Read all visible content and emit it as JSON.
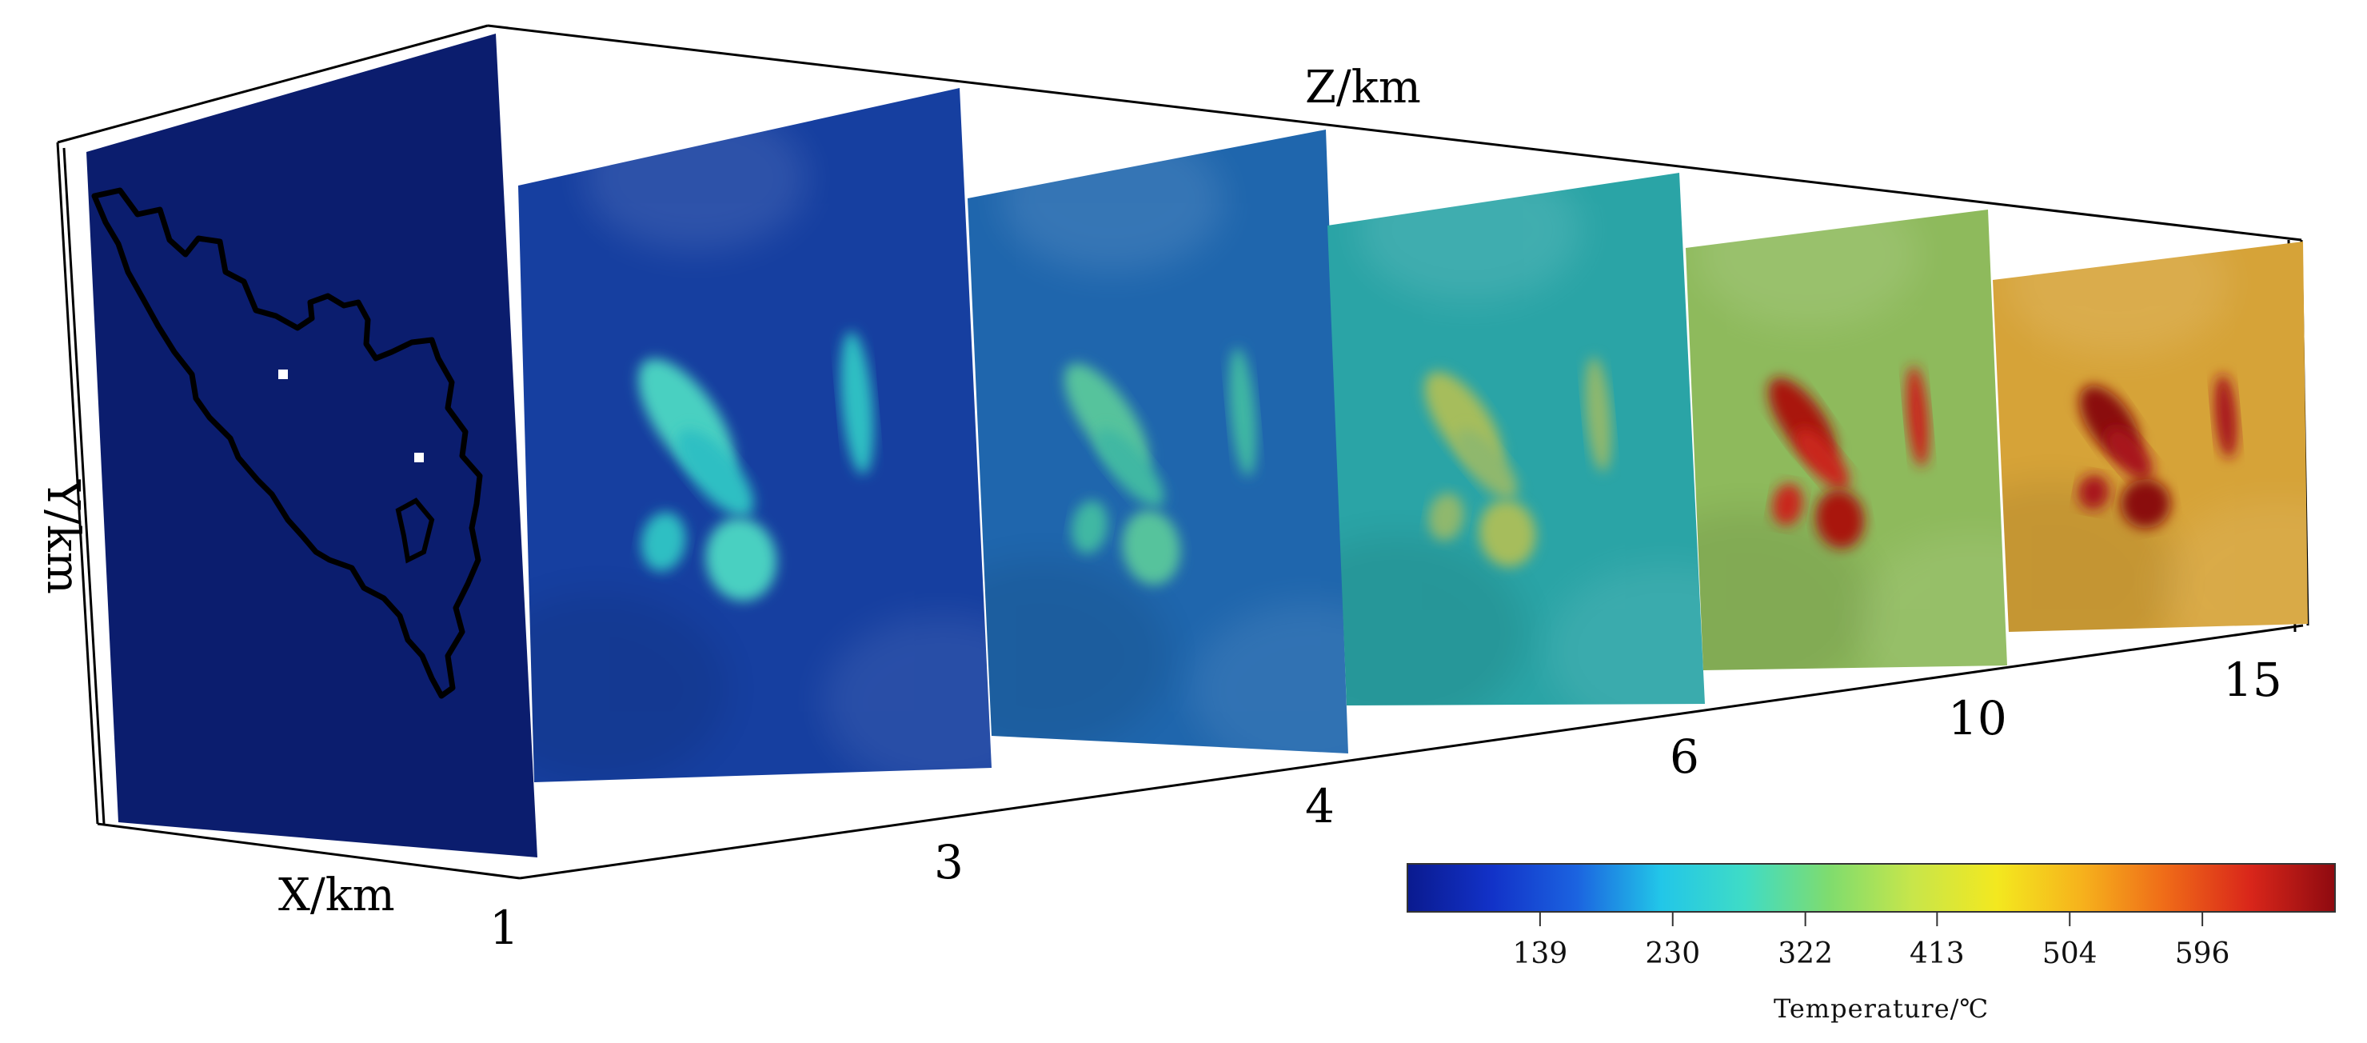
{
  "axes": {
    "x_label": "X/km",
    "y_label": "Y/km",
    "z_label": "Z/km"
  },
  "slices": [
    {
      "depth_label": "1",
      "base_color": "#0b1d6e",
      "anomaly_color": "#0b1d6e",
      "anomaly_hot": "#0b1d6e"
    },
    {
      "depth_label": "3",
      "base_color": "#163fa0",
      "anomaly_color": "#2fbfc3",
      "anomaly_hot": "#49d0c1"
    },
    {
      "depth_label": "4",
      "base_color": "#1f66ad",
      "anomaly_color": "#40b8a3",
      "anomaly_hot": "#57c39c"
    },
    {
      "depth_label": "6",
      "base_color": "#2aa4a6",
      "anomaly_color": "#8fb86d",
      "anomaly_hot": "#a6bd5c"
    },
    {
      "depth_label": "10",
      "base_color": "#8eba5c",
      "anomaly_color": "#c9281d",
      "anomaly_hot": "#a9150f"
    },
    {
      "depth_label": "15",
      "base_color": "#d6a338",
      "anomaly_color": "#a8141d",
      "anomaly_hot": "#8a0a10"
    }
  ],
  "colorbar": {
    "title": "Temperature/℃",
    "ticks": [
      "139",
      "230",
      "322",
      "413",
      "504",
      "596"
    ],
    "tick_fractions": [
      0.143,
      0.286,
      0.429,
      0.571,
      0.714,
      0.857
    ],
    "stops": [
      "#0a1a8f",
      "#1232c8",
      "#1b63e0",
      "#22c6e8",
      "#3fdcc6",
      "#7fdc6e",
      "#c8e64a",
      "#f3e81f",
      "#f6b21c",
      "#ef6a18",
      "#d9261a",
      "#8e0a10"
    ]
  }
}
